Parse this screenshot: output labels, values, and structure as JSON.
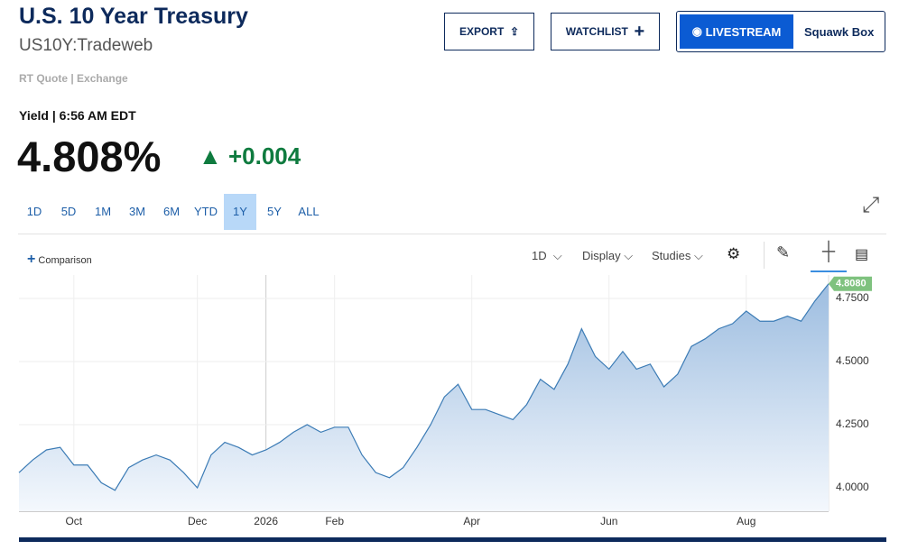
{
  "header": {
    "title": "U.S. 10 Year Treasury",
    "symbol": "US10Y:Tradeweb",
    "source": "RT Quote | Exchange",
    "buttons": [
      "EXPORT",
      "WATCHLIST"
    ],
    "live": "LIVESTREAM",
    "squawk": "Squawk Box"
  },
  "quote": {
    "time": "Yield | 6:56 AM EDT",
    "price": "4.808%",
    "change": "+0.004"
  },
  "ranges": [
    "1D",
    "5D",
    "1M",
    "3M",
    "6M",
    "YTD",
    "1Y",
    "5Y",
    "ALL"
  ],
  "active_range": "1Y",
  "toolbar": {
    "comparison": "Comparison",
    "interval": "1D",
    "display": "Display",
    "studies": "Studies"
  },
  "chart_data": {
    "type": "area",
    "color": "#3b7bb5",
    "categories": [
      null,
      null,
      null,
      null,
      "Oct",
      null,
      null,
      null,
      null,
      null,
      null,
      null,
      null,
      "Dec",
      null,
      null,
      null,
      null,
      "2026",
      null,
      null,
      null,
      null,
      "Feb",
      null,
      null,
      null,
      null,
      null,
      null,
      null,
      null,
      null,
      "Apr",
      null,
      null,
      null,
      null,
      null,
      null,
      null,
      null,
      null,
      "Jun",
      null,
      null,
      null,
      null,
      null,
      null,
      null,
      null,
      null,
      "Aug",
      null,
      null,
      null,
      null,
      null,
      null
    ],
    "values": [
      4.06,
      4.11,
      4.15,
      4.16,
      4.09,
      4.09,
      4.02,
      3.99,
      4.08,
      4.11,
      4.13,
      4.11,
      4.06,
      4.0,
      4.13,
      4.18,
      4.16,
      4.13,
      4.15,
      4.18,
      4.22,
      4.25,
      4.22,
      4.24,
      4.24,
      4.13,
      4.06,
      4.04,
      4.08,
      4.16,
      4.25,
      4.36,
      4.41,
      4.31,
      4.31,
      4.29,
      4.27,
      4.33,
      4.43,
      4.39,
      4.49,
      4.63,
      4.52,
      4.47,
      4.54,
      4.47,
      4.49,
      4.4,
      4.45,
      4.56,
      4.59,
      4.63,
      4.65,
      4.7,
      4.66,
      4.66,
      4.68,
      4.66,
      4.74,
      4.808
    ],
    "value_labels": [
      null,
      null,
      null,
      null,
      null,
      null,
      null,
      null,
      null,
      null,
      null,
      null,
      null,
      null,
      null,
      null,
      null,
      null,
      null,
      null,
      null,
      null,
      null,
      null,
      null,
      null,
      null,
      null,
      null,
      null,
      null,
      null,
      null,
      null,
      null,
      null,
      null,
      null,
      null,
      null,
      null,
      null,
      null,
      null,
      null,
      null,
      null,
      null,
      null,
      null,
      null,
      null,
      null,
      null,
      null,
      null,
      null,
      null,
      null,
      "4.8080"
    ],
    "ylim": [
      3.907,
      4.843
    ],
    "yticks": [
      {
        "value": 4,
        "label": "4.0000"
      },
      {
        "value": 4.25,
        "label": "4.2500"
      },
      {
        "value": 4.5,
        "label": "4.5000"
      },
      {
        "value": 4.75,
        "label": "4.7500"
      }
    ],
    "grid": true
  }
}
